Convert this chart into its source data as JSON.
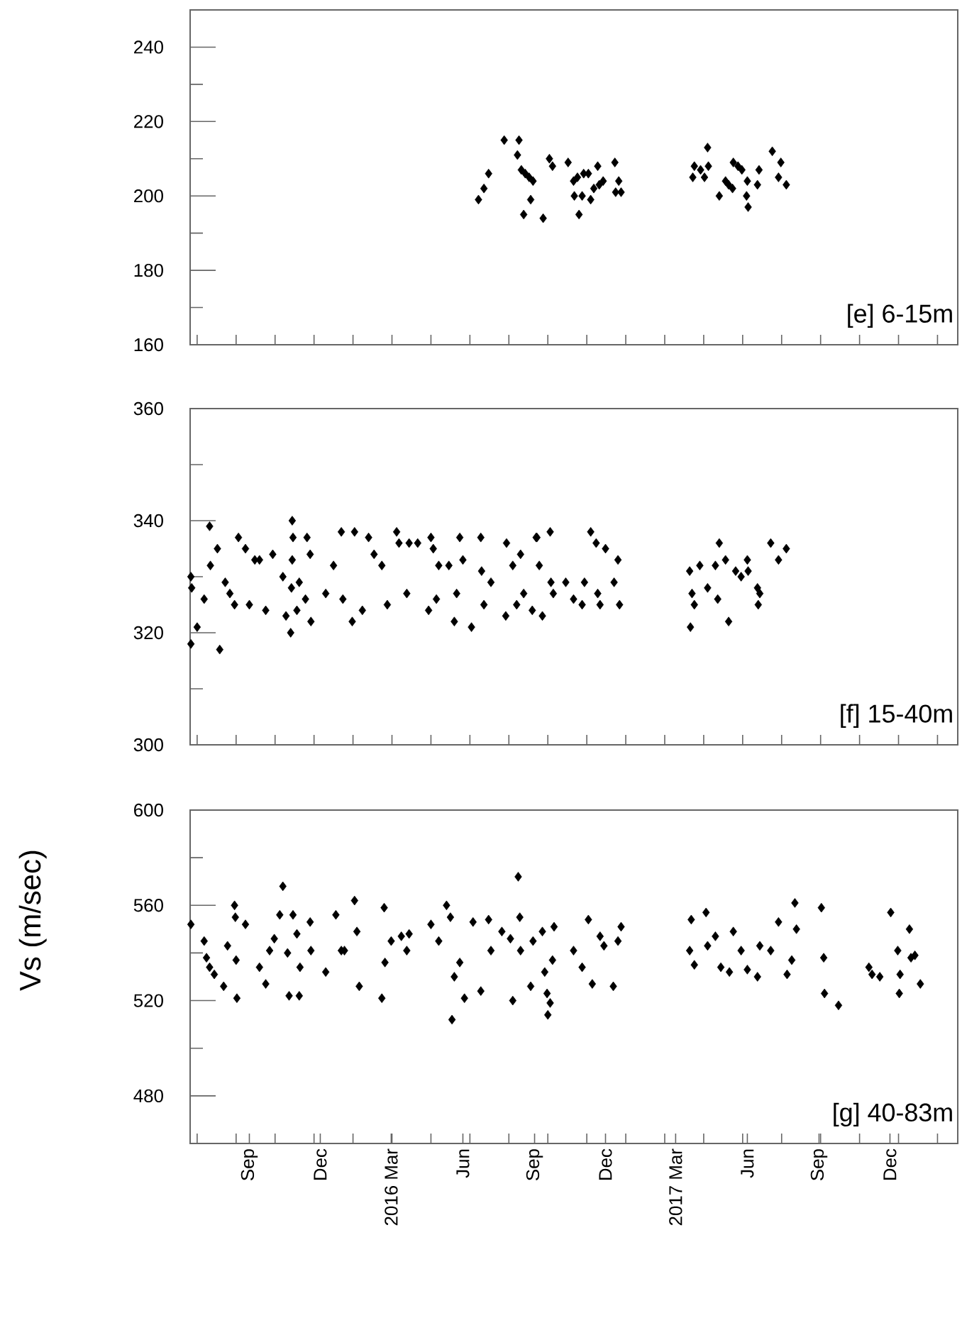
{
  "chart_data": [
    {
      "type": "scatter",
      "color": "#000000",
      "marker": "diamond",
      "tick_labels": "y",
      "annotations": [
        "[e] 6-15m"
      ],
      "xlim": [
        "2015-06-17",
        "2018-02-26"
      ],
      "ylim": [
        160,
        250
      ],
      "xticks": [
        {
          "value": "2015-06-26",
          "label": null
        },
        {
          "value": "2015-08-15",
          "label": null
        },
        {
          "value": "2015-10-04",
          "label": null
        },
        {
          "value": "2015-11-23",
          "label": null
        },
        {
          "value": "2016-01-12",
          "label": null
        },
        {
          "value": "2016-03-02",
          "label": null
        },
        {
          "value": "2016-04-21",
          "label": null
        },
        {
          "value": "2016-06-10",
          "label": null
        },
        {
          "value": "2016-07-30",
          "label": null
        },
        {
          "value": "2016-09-18",
          "label": null
        },
        {
          "value": "2016-11-07",
          "label": null
        },
        {
          "value": "2016-12-27",
          "label": null
        },
        {
          "value": "2017-02-15",
          "label": null
        },
        {
          "value": "2017-04-06",
          "label": null
        },
        {
          "value": "2017-05-26",
          "label": null
        },
        {
          "value": "2017-07-15",
          "label": null
        },
        {
          "value": "2017-09-03",
          "label": null
        },
        {
          "value": "2017-10-23",
          "label": null
        },
        {
          "value": "2017-12-12",
          "label": null
        },
        {
          "value": "2018-01-31",
          "label": null
        }
      ],
      "yticks": [
        160,
        {
          "value": 170,
          "label": null
        },
        180,
        {
          "value": 190,
          "label": null
        },
        200,
        {
          "value": 210,
          "label": null
        },
        220,
        {
          "value": 230,
          "label": null
        },
        240
      ],
      "x": [
        "2016-06-21",
        "2016-06-28",
        "2016-07-04",
        "2016-07-24",
        "2016-08-12",
        "2016-08-10",
        "2016-08-15",
        "2016-08-20",
        "2016-08-25",
        "2016-08-30",
        "2016-08-27",
        "2016-08-18",
        "2016-09-12",
        "2016-09-20",
        "2016-09-24",
        "2016-10-14",
        "2016-10-21",
        "2016-10-26",
        "2016-11-03",
        "2016-11-09",
        "2016-10-22",
        "2016-11-01",
        "2016-11-12",
        "2016-10-28",
        "2016-11-16",
        "2016-11-21",
        "2016-11-23",
        "2016-11-28",
        "2016-12-13",
        "2016-12-18",
        "2016-12-14",
        "2016-12-21",
        "2017-03-23",
        "2017-03-25",
        "2017-04-02",
        "2017-04-07",
        "2017-04-11",
        "2017-04-12",
        "2017-04-26",
        "2017-05-04",
        "2017-05-08",
        "2017-05-13",
        "2017-05-14",
        "2017-05-20",
        "2017-05-25",
        "2017-06-01",
        "2017-05-31",
        "2017-06-02",
        "2017-06-14",
        "2017-06-16",
        "2017-07-03",
        "2017-07-11",
        "2017-07-14",
        "2017-07-21"
      ],
      "values": [
        199,
        202,
        206,
        215,
        215,
        211,
        207,
        206,
        205,
        204,
        199,
        195,
        194,
        210,
        208,
        209,
        204,
        205,
        206,
        206,
        200,
        200,
        199,
        195,
        202,
        208,
        203,
        204,
        209,
        204,
        201,
        201,
        205,
        208,
        207,
        205,
        213,
        208,
        200,
        204,
        203,
        202,
        209,
        208,
        207,
        204,
        200,
        197,
        203,
        207,
        212,
        205,
        209,
        203
      ]
    },
    {
      "type": "scatter",
      "color": "#000000",
      "marker": "diamond",
      "tick_labels": "y",
      "annotations": [
        "[f] 15-40m"
      ],
      "xlim": [
        "2015-06-17",
        "2018-02-26"
      ],
      "ylim": [
        300,
        360
      ],
      "xticks": [
        {
          "value": "2015-06-26",
          "label": null
        },
        {
          "value": "2015-08-15",
          "label": null
        },
        {
          "value": "2015-10-04",
          "label": null
        },
        {
          "value": "2015-11-23",
          "label": null
        },
        {
          "value": "2016-01-12",
          "label": null
        },
        {
          "value": "2016-03-02",
          "label": null
        },
        {
          "value": "2016-04-21",
          "label": null
        },
        {
          "value": "2016-06-10",
          "label": null
        },
        {
          "value": "2016-07-30",
          "label": null
        },
        {
          "value": "2016-09-18",
          "label": null
        },
        {
          "value": "2016-11-07",
          "label": null
        },
        {
          "value": "2016-12-27",
          "label": null
        },
        {
          "value": "2017-02-15",
          "label": null
        },
        {
          "value": "2017-04-06",
          "label": null
        },
        {
          "value": "2017-05-26",
          "label": null
        },
        {
          "value": "2017-07-15",
          "label": null
        },
        {
          "value": "2017-09-03",
          "label": null
        },
        {
          "value": "2017-10-23",
          "label": null
        },
        {
          "value": "2017-12-12",
          "label": null
        },
        {
          "value": "2018-01-31",
          "label": null
        }
      ],
      "yticks": [
        300,
        {
          "value": 310,
          "label": null
        },
        320,
        {
          "value": 330,
          "label": null
        },
        340,
        {
          "value": 350,
          "label": null
        },
        360
      ],
      "x": [
        "2015-06-18",
        "2015-06-19",
        "2015-06-18",
        "2015-06-26",
        "2015-07-12",
        "2015-07-25",
        "2015-07-22",
        "2015-07-13",
        "2015-07-05",
        "2015-08-01",
        "2015-08-07",
        "2015-08-18",
        "2015-08-27",
        "2015-08-13",
        "2015-09-01",
        "2015-09-08",
        "2015-09-14",
        "2015-09-22",
        "2015-10-01",
        "2015-10-14",
        "2015-10-26",
        "2015-10-27",
        "2015-10-26",
        "2015-10-25",
        "2015-10-24",
        "2015-10-18",
        "2015-11-01",
        "2015-11-04",
        "2015-11-14",
        "2015-11-18",
        "2015-11-19",
        "2015-11-12",
        "2015-12-08",
        "2015-12-18",
        "2015-12-28",
        "2015-12-30",
        "2016-01-11",
        "2016-01-14",
        "2016-01-24",
        "2016-02-01",
        "2016-02-08",
        "2016-02-18",
        "2016-02-25",
        "2016-03-08",
        "2016-03-11",
        "2016-03-24",
        "2016-04-04",
        "2016-04-21",
        "2016-03-21",
        "2016-04-18",
        "2016-04-28",
        "2016-04-24",
        "2016-05-01",
        "2016-05-14",
        "2016-05-21",
        "2016-05-28",
        "2016-06-01",
        "2016-05-24",
        "2016-06-12",
        "2016-06-24",
        "2016-06-25",
        "2016-06-28",
        "2016-07-07",
        "2016-07-27",
        "2016-07-26",
        "2016-08-04",
        "2016-08-09",
        "2016-08-14",
        "2016-08-18",
        "2016-08-29",
        "2016-09-03",
        "2016-09-04",
        "2016-09-07",
        "2016-09-11",
        "2016-09-21",
        "2016-09-22",
        "2016-09-25",
        "2016-10-11",
        "2016-10-21",
        "2016-11-01",
        "2016-11-04",
        "2016-11-12",
        "2016-11-19",
        "2016-11-21",
        "2016-11-24",
        "2016-12-01",
        "2016-12-12",
        "2016-12-17",
        "2016-12-19",
        "2017-03-20",
        "2017-03-19",
        "2017-03-22",
        "2017-03-25",
        "2017-04-01",
        "2017-04-11",
        "2017-04-21",
        "2017-04-26",
        "2017-04-24",
        "2017-05-04",
        "2017-05-08",
        "2017-05-17",
        "2017-05-24",
        "2017-06-01",
        "2017-06-02",
        "2017-06-14",
        "2017-06-17",
        "2017-06-15",
        "2017-07-01",
        "2017-07-11",
        "2017-07-21"
      ],
      "values": [
        330,
        328,
        318,
        321,
        339,
        317,
        335,
        332,
        326,
        329,
        327,
        337,
        335,
        325,
        325,
        333,
        333,
        324,
        334,
        330,
        340,
        337,
        333,
        328,
        320,
        323,
        324,
        329,
        337,
        334,
        322,
        326,
        327,
        332,
        338,
        326,
        322,
        338,
        324,
        337,
        334,
        332,
        325,
        338,
        336,
        336,
        336,
        337,
        327,
        324,
        326,
        335,
        332,
        332,
        322,
        337,
        333,
        327,
        321,
        337,
        331,
        325,
        329,
        336,
        323,
        332,
        325,
        334,
        327,
        324,
        337,
        337,
        332,
        323,
        338,
        329,
        327,
        329,
        326,
        325,
        329,
        338,
        336,
        327,
        325,
        335,
        329,
        333,
        325,
        321,
        331,
        327,
        325,
        332,
        328,
        332,
        336,
        326,
        333,
        322,
        331,
        330,
        333,
        331,
        328,
        327,
        325,
        336,
        333,
        335
      ]
    },
    {
      "type": "scatter",
      "color": "#000000",
      "marker": "diamond",
      "ylabel": "Vs (m/sec)",
      "annotations": [
        "[g] 40-83m"
      ],
      "xlim": [
        "2015-06-17",
        "2018-02-26"
      ],
      "ylim": [
        460,
        600
      ],
      "xticks": [
        {
          "value": "2015-06-26",
          "label": null
        },
        {
          "value": "2015-08-15",
          "label": null
        },
        {
          "value": "2015-09-01",
          "label": "Sep"
        },
        {
          "value": "2015-10-04",
          "label": null
        },
        {
          "value": "2015-11-23",
          "label": null
        },
        {
          "value": "2015-12-01",
          "label": "Dec"
        },
        {
          "value": "2016-01-12",
          "label": null
        },
        {
          "value": "2016-03-01",
          "label": "2016 Mar"
        },
        {
          "value": "2016-03-02",
          "label": null
        },
        {
          "value": "2016-04-21",
          "label": null
        },
        {
          "value": "2016-06-01",
          "label": "Jun"
        },
        {
          "value": "2016-06-10",
          "label": null
        },
        {
          "value": "2016-07-30",
          "label": null
        },
        {
          "value": "2016-09-01",
          "label": "Sep"
        },
        {
          "value": "2016-09-18",
          "label": null
        },
        {
          "value": "2016-11-07",
          "label": null
        },
        {
          "value": "2016-12-01",
          "label": "Dec"
        },
        {
          "value": "2016-12-27",
          "label": null
        },
        {
          "value": "2017-02-15",
          "label": null
        },
        {
          "value": "2017-03-01",
          "label": "2017 Mar"
        },
        {
          "value": "2017-04-06",
          "label": null
        },
        {
          "value": "2017-05-26",
          "label": null
        },
        {
          "value": "2017-06-01",
          "label": "Jun"
        },
        {
          "value": "2017-07-15",
          "label": null
        },
        {
          "value": "2017-09-01",
          "label": "Sep"
        },
        {
          "value": "2017-09-03",
          "label": null
        },
        {
          "value": "2017-10-23",
          "label": null
        },
        {
          "value": "2017-12-01",
          "label": "Dec"
        },
        {
          "value": "2017-12-12",
          "label": null
        },
        {
          "value": "2018-01-31",
          "label": null
        }
      ],
      "yticks": [
        480,
        {
          "value": 500,
          "label": null
        },
        520,
        {
          "value": 540,
          "label": null
        },
        560,
        {
          "value": 580,
          "label": null
        },
        600
      ],
      "x": [
        "2015-06-18",
        "2015-07-05",
        "2015-07-08",
        "2015-07-12",
        "2015-07-18",
        "2015-07-30",
        "2015-08-04",
        "2015-08-13",
        "2015-08-14",
        "2015-08-15",
        "2015-08-16",
        "2015-08-27",
        "2015-09-14",
        "2015-09-22",
        "2015-09-27",
        "2015-10-03",
        "2015-10-14",
        "2015-10-10",
        "2015-10-20",
        "2015-10-22",
        "2015-10-27",
        "2015-11-04",
        "2015-11-01",
        "2015-11-05",
        "2015-11-18",
        "2015-11-19",
        "2015-12-08",
        "2015-12-21",
        "2015-12-28",
        "2016-01-01",
        "2016-01-14",
        "2016-01-17",
        "2016-01-20",
        "2016-02-18",
        "2016-02-21",
        "2016-02-22",
        "2016-03-01",
        "2016-03-14",
        "2016-03-21",
        "2016-03-24",
        "2016-04-21",
        "2016-05-01",
        "2016-05-11",
        "2016-05-16",
        "2016-05-18",
        "2016-05-21",
        "2016-05-28",
        "2016-06-03",
        "2016-06-14",
        "2016-06-24",
        "2016-07-04",
        "2016-07-07",
        "2016-07-21",
        "2016-08-01",
        "2016-08-04",
        "2016-08-11",
        "2016-08-13",
        "2016-08-14",
        "2016-08-27",
        "2016-08-30",
        "2016-09-11",
        "2016-09-14",
        "2016-09-17",
        "2016-09-21",
        "2016-09-18",
        "2016-09-26",
        "2016-09-24",
        "2016-10-21",
        "2016-11-01",
        "2016-11-09",
        "2016-11-14",
        "2016-11-24",
        "2016-11-29",
        "2016-12-11",
        "2016-12-17",
        "2016-12-21",
        "2017-03-21",
        "2017-03-19",
        "2017-03-25",
        "2017-04-09",
        "2017-04-11",
        "2017-04-21",
        "2017-04-28",
        "2017-05-09",
        "2017-05-14",
        "2017-05-24",
        "2017-06-01",
        "2017-06-14",
        "2017-06-17",
        "2017-07-01",
        "2017-07-11",
        "2017-07-22",
        "2017-07-28",
        "2017-08-01",
        "2017-08-03",
        "2017-09-04",
        "2017-09-07",
        "2017-09-08",
        "2017-09-26",
        "2017-11-04",
        "2017-11-08",
        "2017-11-18",
        "2017-12-02",
        "2017-12-11",
        "2017-12-14",
        "2017-12-13",
        "2017-12-26",
        "2017-12-28",
        "2018-01-02",
        "2018-01-09"
      ],
      "values": [
        552,
        545,
        538,
        534,
        531,
        526,
        543,
        560,
        555,
        537,
        521,
        552,
        534,
        527,
        541,
        546,
        568,
        556,
        540,
        522,
        556,
        522,
        548,
        534,
        553,
        541,
        532,
        556,
        541,
        541,
        562,
        549,
        526,
        521,
        559,
        536,
        545,
        547,
        541,
        548,
        552,
        545,
        560,
        555,
        512,
        530,
        536,
        521,
        553,
        524,
        554,
        541,
        549,
        546,
        520,
        572,
        555,
        541,
        526,
        545,
        549,
        532,
        523,
        519,
        514,
        551,
        537,
        541,
        534,
        554,
        527,
        547,
        543,
        526,
        545,
        551,
        554,
        541,
        535,
        557,
        543,
        547,
        534,
        532,
        549,
        541,
        533,
        530,
        543,
        541,
        553,
        531,
        537,
        561,
        550,
        559,
        538,
        523,
        518,
        534,
        531,
        530,
        557,
        541,
        531,
        523,
        550,
        538,
        539,
        527
      ]
    }
  ]
}
